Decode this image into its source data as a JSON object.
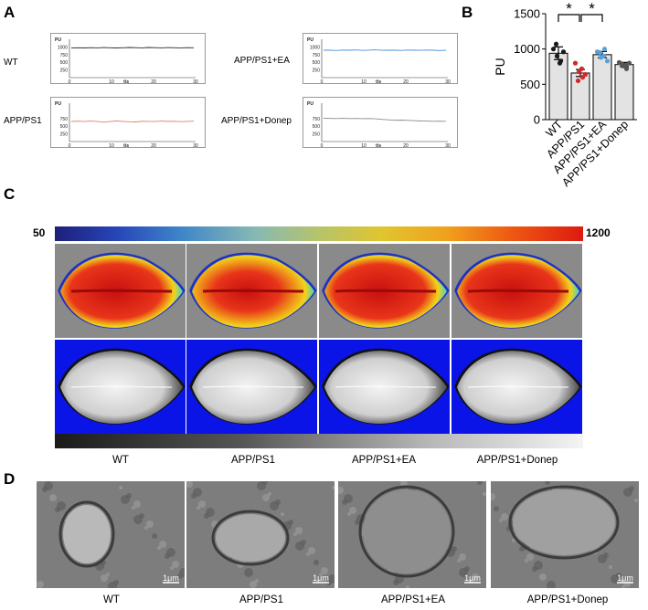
{
  "panel_labels": {
    "a": "A",
    "b": "B",
    "c": "C",
    "d": "D"
  },
  "groups": [
    "WT",
    "APP/PS1",
    "APP/PS1+EA",
    "APP/PS1+Donep"
  ],
  "traces": {
    "unit": "PU",
    "x_axis_label": "t/s",
    "x_ticks": [
      "0",
      "10",
      "20",
      "30"
    ],
    "items": [
      {
        "label": "WT",
        "y_ticks": [
          "1000",
          "750",
          "500",
          "250"
        ],
        "color": "#2b2b2b",
        "values": [
          985,
          988,
          982,
          990,
          985,
          992,
          986,
          980,
          988,
          996,
          990,
          985,
          995,
          990,
          985,
          992,
          988,
          984,
          990,
          986
        ]
      },
      {
        "label": "APP/PS1+EA",
        "y_ticks": [
          "1000",
          "750",
          "500",
          "250"
        ],
        "color": "#4a90d9",
        "values": [
          905,
          910,
          898,
          912,
          905,
          915,
          900,
          908,
          918,
          903,
          910,
          905,
          899,
          912,
          906,
          902,
          911,
          907,
          898,
          905
        ]
      },
      {
        "label": "APP/PS1",
        "y_ticks": [
          "750",
          "500",
          "250"
        ],
        "color": "#d9826a",
        "values": [
          665,
          672,
          660,
          675,
          668,
          640,
          662,
          678,
          667,
          655,
          650,
          670,
          668,
          660,
          675,
          665,
          671,
          658,
          666,
          672
        ]
      },
      {
        "label": "APP/PS1+Donep",
        "y_ticks": [
          "750",
          "500",
          "250"
        ],
        "color": "#8a8a8a",
        "values": [
          770,
          765,
          762,
          768,
          760,
          764,
          758,
          760,
          752,
          735,
          720,
          705,
          710,
          700,
          690,
          680,
          675,
          670,
          672,
          668
        ]
      }
    ]
  },
  "chart_data": {
    "type": "bar",
    "categories": [
      "WT",
      "APP/PS1",
      "APP/PS1+EA",
      "APP/PS1+Donep"
    ],
    "values": [
      940,
      660,
      920,
      780
    ],
    "errors": [
      90,
      50,
      45,
      30
    ],
    "points": [
      [
        1000,
        900,
        830,
        1070,
        800,
        960
      ],
      [
        800,
        680,
        600,
        550,
        720,
        640
      ],
      [
        960,
        880,
        1000,
        950,
        900,
        830
      ],
      [
        810,
        760,
        720,
        790,
        770,
        800
      ]
    ],
    "point_colors": [
      "#1a1a1a",
      "#d62728",
      "#5aa0d8",
      "#555555"
    ],
    "bar_color": "#e3e3e3",
    "ylabel": "PU",
    "y_ticks": [
      "1500",
      "1000",
      "500",
      "0"
    ],
    "ylim": [
      0,
      1500
    ],
    "significance": [
      "*",
      "*"
    ]
  },
  "colorbar": {
    "min_label": "50",
    "max_label": "1200"
  },
  "flux_captions": [
    "WT",
    "APP/PS1",
    "APP/PS1+EA",
    "APP/PS1+Donep"
  ],
  "tem": {
    "scale_label": "1μm",
    "captions": [
      "WT",
      "APP/PS1",
      "APP/PS1+EA",
      "APP/PS1+Donep"
    ]
  }
}
